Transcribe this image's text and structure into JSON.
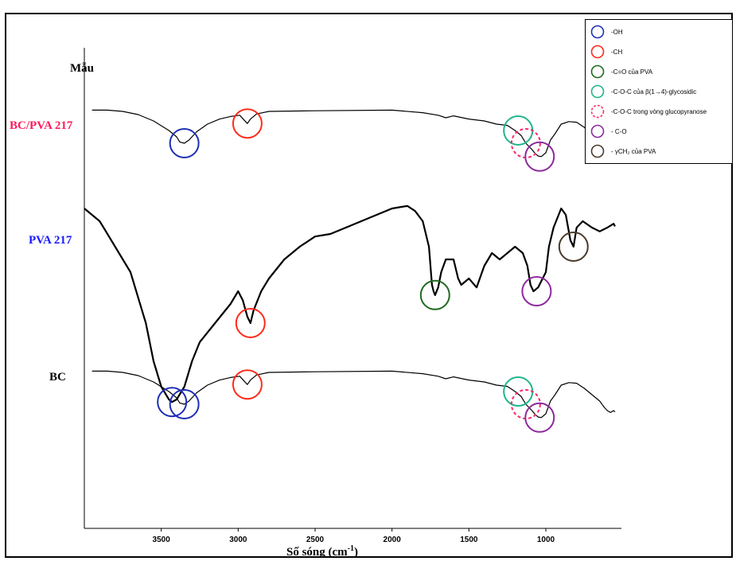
{
  "chart_data": {
    "type": "line",
    "title": "",
    "ylabel": "Mẫu",
    "xlabel": "Số sóng (cm",
    "xlabel_sup": "-1",
    "x_axis": {
      "xlim": [
        4000,
        550
      ],
      "ticks": [
        "3500",
        "3000",
        "2500",
        "2000",
        "1500",
        "1000"
      ],
      "tick_values": [
        3500,
        3000,
        2500,
        2000,
        1500,
        1000
      ]
    },
    "series": [
      {
        "name": "BC/PVA 217",
        "color": "#ff1a5c",
        "points": [
          [
            3950,
            0.52
          ],
          [
            3850,
            0.52
          ],
          [
            3750,
            0.5
          ],
          [
            3650,
            0.45
          ],
          [
            3550,
            0.35
          ],
          [
            3450,
            0.2
          ],
          [
            3400,
            0.1
          ],
          [
            3380,
            0.02
          ],
          [
            3350,
            0.0
          ],
          [
            3320,
            0.05
          ],
          [
            3270,
            0.18
          ],
          [
            3200,
            0.3
          ],
          [
            3120,
            0.38
          ],
          [
            3050,
            0.42
          ],
          [
            2990,
            0.44
          ],
          [
            2960,
            0.36
          ],
          [
            2940,
            0.31
          ],
          [
            2920,
            0.38
          ],
          [
            2880,
            0.46
          ],
          [
            2800,
            0.5
          ],
          [
            2500,
            0.51
          ],
          [
            2000,
            0.52
          ],
          [
            1800,
            0.48
          ],
          [
            1700,
            0.44
          ],
          [
            1650,
            0.4
          ],
          [
            1600,
            0.43
          ],
          [
            1500,
            0.38
          ],
          [
            1400,
            0.35
          ],
          [
            1320,
            0.3
          ],
          [
            1250,
            0.28
          ],
          [
            1200,
            0.2
          ],
          [
            1160,
            0.12
          ],
          [
            1130,
            0.0
          ],
          [
            1110,
            -0.05
          ],
          [
            1090,
            -0.1
          ],
          [
            1070,
            -0.16
          ],
          [
            1060,
            -0.18
          ],
          [
            1050,
            -0.2
          ],
          [
            1030,
            -0.21
          ],
          [
            1000,
            -0.15
          ],
          [
            970,
            0.05
          ],
          [
            940,
            0.15
          ],
          [
            900,
            0.3
          ],
          [
            850,
            0.34
          ],
          [
            800,
            0.33
          ],
          [
            750,
            0.25
          ],
          [
            700,
            0.15
          ],
          [
            650,
            0.05
          ],
          [
            620,
            -0.05
          ],
          [
            600,
            -0.1
          ],
          [
            580,
            -0.13
          ],
          [
            560,
            -0.1
          ],
          [
            550,
            -0.12
          ]
        ]
      },
      {
        "name": "PVA 217",
        "color": "#1a1aff",
        "points": [
          [
            4000,
            0.6
          ],
          [
            3900,
            0.5
          ],
          [
            3800,
            0.3
          ],
          [
            3700,
            0.1
          ],
          [
            3600,
            -0.3
          ],
          [
            3550,
            -0.6
          ],
          [
            3500,
            -0.8
          ],
          [
            3450,
            -0.9
          ],
          [
            3430,
            -0.92
          ],
          [
            3400,
            -0.9
          ],
          [
            3350,
            -0.8
          ],
          [
            3300,
            -0.6
          ],
          [
            3250,
            -0.45
          ],
          [
            3150,
            -0.3
          ],
          [
            3050,
            -0.15
          ],
          [
            3000,
            -0.05
          ],
          [
            2970,
            -0.12
          ],
          [
            2940,
            -0.25
          ],
          [
            2920,
            -0.3
          ],
          [
            2900,
            -0.2
          ],
          [
            2850,
            -0.05
          ],
          [
            2800,
            0.05
          ],
          [
            2700,
            0.2
          ],
          [
            2600,
            0.3
          ],
          [
            2500,
            0.38
          ],
          [
            2400,
            0.4
          ],
          [
            2300,
            0.45
          ],
          [
            2200,
            0.5
          ],
          [
            2100,
            0.55
          ],
          [
            2000,
            0.6
          ],
          [
            1900,
            0.62
          ],
          [
            1850,
            0.58
          ],
          [
            1800,
            0.5
          ],
          [
            1760,
            0.3
          ],
          [
            1740,
            0.0
          ],
          [
            1730,
            -0.05
          ],
          [
            1720,
            -0.08
          ],
          [
            1700,
            -0.02
          ],
          [
            1680,
            0.1
          ],
          [
            1650,
            0.2
          ],
          [
            1600,
            0.2
          ],
          [
            1570,
            0.05
          ],
          [
            1550,
            0.0
          ],
          [
            1500,
            0.05
          ],
          [
            1450,
            -0.02
          ],
          [
            1400,
            0.15
          ],
          [
            1350,
            0.25
          ],
          [
            1300,
            0.2
          ],
          [
            1250,
            0.25
          ],
          [
            1200,
            0.3
          ],
          [
            1150,
            0.25
          ],
          [
            1120,
            0.15
          ],
          [
            1100,
            0.0
          ],
          [
            1080,
            -0.05
          ],
          [
            1050,
            -0.02
          ],
          [
            1000,
            0.1
          ],
          [
            980,
            0.3
          ],
          [
            950,
            0.45
          ],
          [
            900,
            0.6
          ],
          [
            870,
            0.55
          ],
          [
            840,
            0.35
          ],
          [
            820,
            0.3
          ],
          [
            800,
            0.45
          ],
          [
            760,
            0.5
          ],
          [
            700,
            0.45
          ],
          [
            650,
            0.42
          ],
          [
            600,
            0.45
          ],
          [
            560,
            0.48
          ],
          [
            550,
            0.46
          ]
        ]
      },
      {
        "name": "BC",
        "color": "#000000",
        "points": [
          [
            3950,
            0.52
          ],
          [
            3850,
            0.52
          ],
          [
            3750,
            0.5
          ],
          [
            3650,
            0.45
          ],
          [
            3550,
            0.35
          ],
          [
            3450,
            0.2
          ],
          [
            3400,
            0.1
          ],
          [
            3380,
            0.02
          ],
          [
            3350,
            0.0
          ],
          [
            3320,
            0.05
          ],
          [
            3270,
            0.18
          ],
          [
            3200,
            0.3
          ],
          [
            3120,
            0.38
          ],
          [
            3050,
            0.42
          ],
          [
            2990,
            0.44
          ],
          [
            2960,
            0.36
          ],
          [
            2940,
            0.31
          ],
          [
            2920,
            0.38
          ],
          [
            2880,
            0.46
          ],
          [
            2800,
            0.5
          ],
          [
            2500,
            0.51
          ],
          [
            2000,
            0.52
          ],
          [
            1800,
            0.48
          ],
          [
            1700,
            0.44
          ],
          [
            1650,
            0.4
          ],
          [
            1600,
            0.43
          ],
          [
            1500,
            0.38
          ],
          [
            1400,
            0.35
          ],
          [
            1320,
            0.3
          ],
          [
            1250,
            0.28
          ],
          [
            1200,
            0.2
          ],
          [
            1160,
            0.12
          ],
          [
            1130,
            0.0
          ],
          [
            1110,
            -0.05
          ],
          [
            1090,
            -0.1
          ],
          [
            1070,
            -0.16
          ],
          [
            1060,
            -0.18
          ],
          [
            1050,
            -0.2
          ],
          [
            1030,
            -0.21
          ],
          [
            1000,
            -0.15
          ],
          [
            970,
            0.05
          ],
          [
            940,
            0.15
          ],
          [
            900,
            0.3
          ],
          [
            850,
            0.34
          ],
          [
            800,
            0.33
          ],
          [
            750,
            0.25
          ],
          [
            700,
            0.15
          ],
          [
            650,
            0.05
          ],
          [
            620,
            -0.05
          ],
          [
            600,
            -0.1
          ],
          [
            580,
            -0.13
          ],
          [
            560,
            -0.1
          ],
          [
            550,
            -0.12
          ]
        ]
      }
    ],
    "markers": [
      {
        "series": 0,
        "x": 3350,
        "y": 0.0,
        "group": "oh"
      },
      {
        "series": 0,
        "x": 2940,
        "y": 0.31,
        "group": "ch"
      },
      {
        "series": 0,
        "x": 1180,
        "y": 0.2,
        "group": "coc_b14"
      },
      {
        "series": 0,
        "x": 1130,
        "y": 0.0,
        "group": "coc_ring"
      },
      {
        "series": 0,
        "x": 1040,
        "y": -0.21,
        "group": "co"
      },
      {
        "series": 1,
        "x": 3430,
        "y": -0.92,
        "group": "oh"
      },
      {
        "series": 1,
        "x": 2920,
        "y": -0.3,
        "group": "ch"
      },
      {
        "series": 1,
        "x": 1720,
        "y": -0.08,
        "group": "co_pva"
      },
      {
        "series": 1,
        "x": 1060,
        "y": -0.05,
        "group": "co"
      },
      {
        "series": 1,
        "x": 820,
        "y": 0.3,
        "group": "gch2"
      },
      {
        "series": 2,
        "x": 3350,
        "y": 0.0,
        "group": "oh"
      },
      {
        "series": 2,
        "x": 2940,
        "y": 0.31,
        "group": "ch"
      },
      {
        "series": 2,
        "x": 1180,
        "y": 0.2,
        "group": "coc_b14"
      },
      {
        "series": 2,
        "x": 1130,
        "y": 0.0,
        "group": "coc_ring"
      },
      {
        "series": 2,
        "x": 1040,
        "y": -0.21,
        "group": "co"
      }
    ],
    "legend": {
      "position": "top-right",
      "items": [
        {
          "key": "oh",
          "label": "-OH",
          "color": "#1f2fb5",
          "dashed": false
        },
        {
          "key": "ch",
          "label": "-CH",
          "color": "#ff2a1a",
          "dashed": false
        },
        {
          "key": "co_pva",
          "label": "-C=O của PVA",
          "color": "#1f6b1f",
          "dashed": false
        },
        {
          "key": "coc_b14",
          "label": "-C-O-C của β(1→4)-glycosidic",
          "color": "#1fb58c",
          "dashed": false
        },
        {
          "key": "coc_ring",
          "label": "-C-O-C trong vòng  glucopyranose",
          "color": "#ff2a6a",
          "dashed": true
        },
        {
          "key": "co",
          "label": "- C-O",
          "color": "#8c2a9c",
          "dashed": false
        },
        {
          "key": "gch2",
          "label": "- γCH₂ của PVA",
          "color": "#4a3a2a",
          "dashed": false
        }
      ]
    }
  }
}
